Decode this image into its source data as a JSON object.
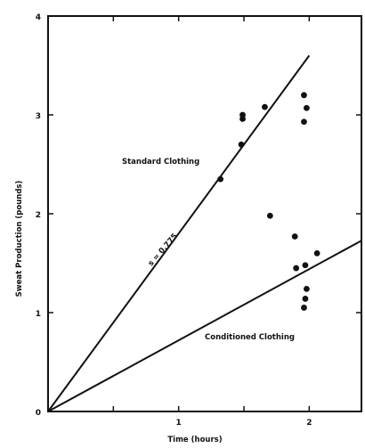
{
  "chart_data": {
    "type": "scatter",
    "title": "",
    "xlabel": "Time (hours)",
    "ylabel": "Sweat Production (pounds)",
    "xlim": [
      0,
      2.4
    ],
    "ylim": [
      0,
      4
    ],
    "x_ticks": [
      0.5,
      1,
      1.5,
      2
    ],
    "x_tick_labels": [
      "",
      "1",
      "",
      "2"
    ],
    "y_ticks": [
      0,
      1,
      2,
      3,
      4
    ],
    "y_tick_labels": [
      "0",
      "1",
      "2",
      "3",
      "4"
    ],
    "grid": false,
    "series": [
      {
        "points": [
          [
            1.32,
            2.35
          ],
          [
            1.48,
            2.7
          ],
          [
            1.49,
            2.96
          ],
          [
            1.49,
            3.0
          ],
          [
            1.66,
            3.08
          ],
          [
            1.7,
            1.98
          ],
          [
            1.89,
            1.77
          ],
          [
            1.9,
            1.45
          ],
          [
            1.96,
            3.2
          ],
          [
            1.96,
            2.93
          ],
          [
            1.97,
            1.48
          ],
          [
            1.98,
            3.07
          ],
          [
            1.98,
            1.24
          ],
          [
            1.97,
            1.14
          ],
          [
            1.96,
            1.05
          ],
          [
            2.06,
            1.6
          ]
        ]
      }
    ],
    "lines": [
      {
        "label": "Standard Clothing",
        "slope": 1.8,
        "x_range": [
          0,
          2.0
        ]
      },
      {
        "label": "Conditioned Clothing",
        "slope": 0.72,
        "x_range": [
          0,
          2.4
        ]
      }
    ],
    "annotations": {
      "slope_label": "s = 0.775",
      "standard": "Standard Clothing",
      "conditioned": "Conditioned Clothing"
    }
  }
}
